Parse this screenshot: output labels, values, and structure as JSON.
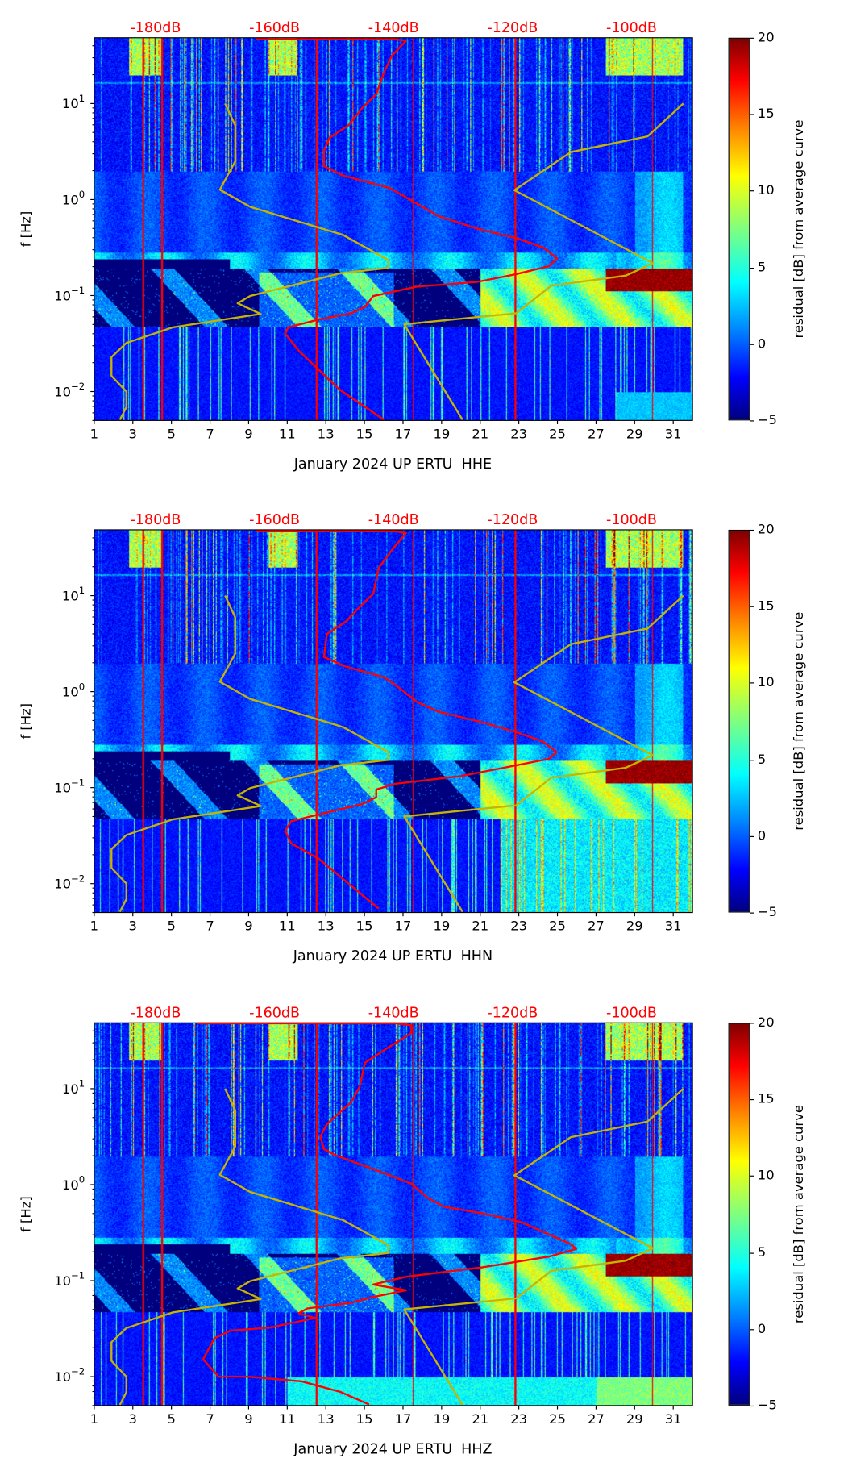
{
  "colorbar": {
    "label": "residual [dB] from average curve",
    "ticks": [
      20,
      15,
      10,
      5,
      0,
      -5
    ],
    "range": [
      -5,
      20
    ],
    "colormap": "jet"
  },
  "colors": {
    "mean_psd": "#ff0000",
    "noise_models": "#c8b400",
    "db_labels": "#ff0000"
  },
  "chart_data": [
    {
      "type": "heatmap",
      "xlabel": "January 2024 UP ERTU  HHE",
      "ylabel": "f [Hz]",
      "xlim": [
        1,
        32
      ],
      "x_ticks": [
        1,
        3,
        5,
        7,
        9,
        11,
        13,
        15,
        17,
        19,
        21,
        23,
        25,
        27,
        29,
        31
      ],
      "yscale": "log",
      "ylim": [
        0.005,
        48.5
      ],
      "y_ticks": [
        {
          "base": "10",
          "exp": "1",
          "log10": 1
        },
        {
          "base": "10",
          "exp": "0",
          "log10": 0
        },
        {
          "base": "10",
          "exp": "−1",
          "log10": -1
        },
        {
          "base": "10",
          "exp": "−2",
          "log10": -2
        }
      ],
      "top_axis": {
        "labels": [
          "-180dB",
          "-160dB",
          "-140dB",
          "-120dB",
          "-100dB"
        ],
        "values": [
          -180,
          -160,
          -140,
          -120,
          -100
        ],
        "range": [
          -190.3,
          -89.75
        ]
      },
      "series": [
        {
          "name": "mean PSD",
          "color": "#ff0000",
          "points_db_log10f": [
            [
              -163.1,
              1.67
            ],
            [
              -139.7,
              1.67
            ],
            [
              -137.9,
              1.652
            ],
            [
              -140.2,
              1.505
            ],
            [
              -141.6,
              1.326
            ],
            [
              -142.9,
              1.098
            ],
            [
              -145.3,
              0.951
            ],
            [
              -147.6,
              0.772
            ],
            [
              -150.8,
              0.641
            ],
            [
              -151.7,
              0.511
            ],
            [
              -151.7,
              0.348
            ],
            [
              -148.5,
              0.25
            ],
            [
              -140.6,
              0.12
            ],
            [
              -137.9,
              0.022
            ],
            [
              -132.4,
              -0.174
            ],
            [
              -125.9,
              -0.304
            ],
            [
              -119.4,
              -0.402
            ],
            [
              -114.8,
              -0.5
            ],
            [
              -112.5,
              -0.614
            ],
            [
              -113.9,
              -0.695
            ],
            [
              -119.4,
              -0.777
            ],
            [
              -125.9,
              -0.858
            ],
            [
              -136.0,
              -0.907
            ],
            [
              -143.4,
              -1.005
            ],
            [
              -144.8,
              -1.119
            ],
            [
              -147.1,
              -1.185
            ],
            [
              -152.6,
              -1.25
            ],
            [
              -157.7,
              -1.331
            ],
            [
              -158.2,
              -1.397
            ],
            [
              -155.9,
              -1.576
            ],
            [
              -149.0,
              -1.983
            ],
            [
              -141.6,
              -2.294
            ]
          ]
        },
        {
          "name": "NLNM",
          "color": "#c8b400",
          "points_db_log10f": [
            [
              -168.3,
              1.0
            ],
            [
              -166.6,
              0.772
            ],
            [
              -166.6,
              0.397
            ],
            [
              -169.2,
              0.103
            ],
            [
              -164.1,
              -0.076
            ],
            [
              -148.5,
              -0.369
            ],
            [
              -140.9,
              -0.63
            ],
            [
              -140.9,
              -0.712
            ],
            [
              -148.9,
              -0.767
            ],
            [
              -164.1,
              -1.005
            ],
            [
              -166.2,
              -1.08
            ],
            [
              -162.3,
              -1.191
            ],
            [
              -177.1,
              -1.331
            ],
            [
              -184.9,
              -1.494
            ],
            [
              -187.4,
              -1.641
            ],
            [
              -187.4,
              -1.837
            ],
            [
              -184.9,
              -2.0
            ],
            [
              -184.9,
              -2.163
            ],
            [
              -186.0,
              -2.294
            ]
          ]
        },
        {
          "name": "NHNM",
          "color": "#c8b400",
          "points_db_log10f": [
            [
              -91.3,
              1.0
            ],
            [
              -97.3,
              0.658
            ],
            [
              -110.2,
              0.495
            ],
            [
              -119.7,
              0.097
            ],
            [
              -96.4,
              -0.663
            ],
            [
              -101.0,
              -0.793
            ],
            [
              -113.5,
              -0.898
            ],
            [
              -119.4,
              -1.185
            ],
            [
              -138.2,
              -1.299
            ],
            [
              -128.4,
              -2.294
            ]
          ]
        }
      ]
    },
    {
      "type": "heatmap",
      "xlabel": "January 2024 UP ERTU  HHN",
      "ylabel": "f [Hz]",
      "xlim": [
        1,
        32
      ],
      "x_ticks": [
        1,
        3,
        5,
        7,
        9,
        11,
        13,
        15,
        17,
        19,
        21,
        23,
        25,
        27,
        29,
        31
      ],
      "yscale": "log",
      "ylim": [
        0.005,
        48.5
      ],
      "y_ticks": [
        {
          "base": "10",
          "exp": "1",
          "log10": 1
        },
        {
          "base": "10",
          "exp": "0",
          "log10": 0
        },
        {
          "base": "10",
          "exp": "−1",
          "log10": -1
        },
        {
          "base": "10",
          "exp": "−2",
          "log10": -2
        }
      ],
      "top_axis": {
        "labels": [
          "-180dB",
          "-160dB",
          "-140dB",
          "-120dB",
          "-100dB"
        ],
        "values": [
          -180,
          -160,
          -140,
          -120,
          -100
        ],
        "range": [
          -190.3,
          -89.75
        ]
      },
      "series": [
        {
          "name": "mean PSD",
          "color": "#ff0000",
          "points_db_log10f": [
            [
              -163.1,
              1.67
            ],
            [
              -139.7,
              1.67
            ],
            [
              -137.9,
              1.65
            ],
            [
              -139.7,
              1.52
            ],
            [
              -142.5,
              1.29
            ],
            [
              -143.4,
              1.02
            ],
            [
              -146.2,
              0.85
            ],
            [
              -148.0,
              0.73
            ],
            [
              -151.2,
              0.6
            ],
            [
              -151.7,
              0.36
            ],
            [
              -148.0,
              0.26
            ],
            [
              -141.6,
              0.15
            ],
            [
              -139.7,
              0.07
            ],
            [
              -136.0,
              -0.11
            ],
            [
              -132.4,
              -0.21
            ],
            [
              -125.0,
              -0.32
            ],
            [
              -119.5,
              -0.42
            ],
            [
              -114.9,
              -0.52
            ],
            [
              -112.6,
              -0.63
            ],
            [
              -113.9,
              -0.7
            ],
            [
              -120.4,
              -0.78
            ],
            [
              -128.7,
              -0.88
            ],
            [
              -139.7,
              -0.96
            ],
            [
              -142.9,
              -1.02
            ],
            [
              -142.9,
              -1.1
            ],
            [
              -145.2,
              -1.17
            ],
            [
              -152.6,
              -1.28
            ],
            [
              -157.2,
              -1.35
            ],
            [
              -158.2,
              -1.45
            ],
            [
              -157.2,
              -1.58
            ],
            [
              -152.6,
              -1.74
            ],
            [
              -142.5,
              -2.26
            ]
          ]
        },
        {
          "name": "NLNM",
          "color": "#c8b400",
          "points_db_log10f": [
            [
              -168.3,
              1.0
            ],
            [
              -166.6,
              0.772
            ],
            [
              -166.6,
              0.397
            ],
            [
              -169.2,
              0.103
            ],
            [
              -164.1,
              -0.076
            ],
            [
              -148.5,
              -0.369
            ],
            [
              -140.9,
              -0.63
            ],
            [
              -140.9,
              -0.712
            ],
            [
              -148.9,
              -0.767
            ],
            [
              -164.1,
              -1.005
            ],
            [
              -166.2,
              -1.08
            ],
            [
              -162.3,
              -1.191
            ],
            [
              -177.1,
              -1.331
            ],
            [
              -184.9,
              -1.494
            ],
            [
              -187.4,
              -1.641
            ],
            [
              -187.4,
              -1.837
            ],
            [
              -184.9,
              -2.0
            ],
            [
              -184.9,
              -2.163
            ],
            [
              -186.0,
              -2.294
            ]
          ]
        },
        {
          "name": "NHNM",
          "color": "#c8b400",
          "points_db_log10f": [
            [
              -91.3,
              1.0
            ],
            [
              -97.3,
              0.658
            ],
            [
              -110.2,
              0.495
            ],
            [
              -119.7,
              0.097
            ],
            [
              -96.4,
              -0.663
            ],
            [
              -101.0,
              -0.793
            ],
            [
              -113.5,
              -0.898
            ],
            [
              -119.4,
              -1.185
            ],
            [
              -138.2,
              -1.299
            ],
            [
              -128.4,
              -2.294
            ]
          ]
        }
      ]
    },
    {
      "type": "heatmap",
      "xlabel": "January 2024 UP ERTU  HHZ",
      "ylabel": "f [Hz]",
      "xlim": [
        1,
        32
      ],
      "x_ticks": [
        1,
        3,
        5,
        7,
        9,
        11,
        13,
        15,
        17,
        19,
        21,
        23,
        25,
        27,
        29,
        31
      ],
      "yscale": "log",
      "ylim": [
        0.005,
        48.5
      ],
      "y_ticks": [
        {
          "base": "10",
          "exp": "1",
          "log10": 1
        },
        {
          "base": "10",
          "exp": "0",
          "log10": 0
        },
        {
          "base": "10",
          "exp": "−1",
          "log10": -1
        },
        {
          "base": "10",
          "exp": "−2",
          "log10": -2
        }
      ],
      "top_axis": {
        "labels": [
          "-180dB",
          "-160dB",
          "-140dB",
          "-120dB",
          "-100dB"
        ],
        "values": [
          -180,
          -160,
          -140,
          -120,
          -100
        ],
        "range": [
          -190.3,
          -89.75
        ]
      },
      "series": [
        {
          "name": "mean PSD",
          "color": "#ff0000",
          "points_db_log10f": [
            [
              -172.9,
              1.68
            ],
            [
              -139.7,
              1.68
            ],
            [
              -137.0,
              1.66
            ],
            [
              -137.0,
              1.58
            ],
            [
              -141.6,
              1.4
            ],
            [
              -144.8,
              1.27
            ],
            [
              -145.7,
              1.02
            ],
            [
              -147.1,
              0.86
            ],
            [
              -148.9,
              0.76
            ],
            [
              -151.2,
              0.63
            ],
            [
              -152.3,
              0.5
            ],
            [
              -151.7,
              0.37
            ],
            [
              -149.9,
              0.31
            ],
            [
              -141.6,
              0.12
            ],
            [
              -137.0,
              0.01
            ],
            [
              -134.2,
              -0.14
            ],
            [
              -131.5,
              -0.23
            ],
            [
              -125.0,
              -0.3
            ],
            [
              -118.5,
              -0.39
            ],
            [
              -110.2,
              -0.62
            ],
            [
              -109.3,
              -0.67
            ],
            [
              -113.9,
              -0.75
            ],
            [
              -125.0,
              -0.86
            ],
            [
              -137.9,
              -0.96
            ],
            [
              -143.4,
              -1.04
            ],
            [
              -137.9,
              -1.1
            ],
            [
              -143.4,
              -1.17
            ],
            [
              -147.1,
              -1.23
            ],
            [
              -154.5,
              -1.29
            ],
            [
              -155.9,
              -1.34
            ],
            [
              -153.2,
              -1.39
            ],
            [
              -160.9,
              -1.49
            ],
            [
              -167.4,
              -1.52
            ],
            [
              -170.1,
              -1.6
            ],
            [
              -172.0,
              -1.82
            ],
            [
              -169.4,
              -2.0
            ],
            [
              -164.6,
              -2.0
            ],
            [
              -155.4,
              -2.05
            ],
            [
              -148.9,
              -2.16
            ],
            [
              -144.1,
              -2.29
            ]
          ]
        },
        {
          "name": "NLNM",
          "color": "#c8b400",
          "points_db_log10f": [
            [
              -168.3,
              1.0
            ],
            [
              -166.6,
              0.772
            ],
            [
              -166.6,
              0.397
            ],
            [
              -169.2,
              0.103
            ],
            [
              -164.1,
              -0.076
            ],
            [
              -148.5,
              -0.369
            ],
            [
              -140.9,
              -0.63
            ],
            [
              -140.9,
              -0.712
            ],
            [
              -148.9,
              -0.767
            ],
            [
              -164.1,
              -1.005
            ],
            [
              -166.2,
              -1.08
            ],
            [
              -162.3,
              -1.191
            ],
            [
              -177.1,
              -1.331
            ],
            [
              -184.9,
              -1.494
            ],
            [
              -187.4,
              -1.641
            ],
            [
              -187.4,
              -1.837
            ],
            [
              -184.9,
              -2.0
            ],
            [
              -184.9,
              -2.163
            ],
            [
              -186.0,
              -2.294
            ]
          ]
        },
        {
          "name": "NHNM",
          "color": "#c8b400",
          "points_db_log10f": [
            [
              -91.3,
              1.0
            ],
            [
              -97.3,
              0.658
            ],
            [
              -110.2,
              0.495
            ],
            [
              -119.7,
              0.097
            ],
            [
              -96.4,
              -0.663
            ],
            [
              -101.0,
              -0.793
            ],
            [
              -113.5,
              -0.898
            ],
            [
              -119.4,
              -1.185
            ],
            [
              -138.2,
              -1.299
            ],
            [
              -128.4,
              -2.294
            ]
          ]
        }
      ]
    }
  ]
}
